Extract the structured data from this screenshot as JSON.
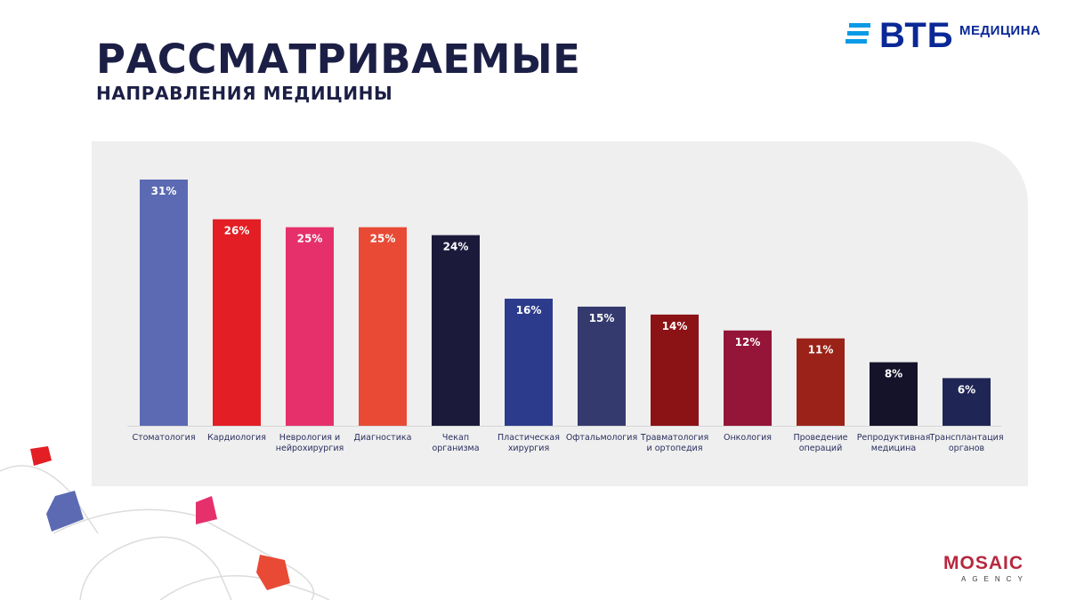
{
  "header": {
    "title": "РАССМАТРИВАЕМЫЕ",
    "subtitle": "НАПРАВЛЕНИЯ МЕДИЦИНЫ"
  },
  "brand": {
    "logo_main": "ВТБ",
    "logo_sub": "МЕДИЦИНА",
    "color": "#0a2896"
  },
  "footer": {
    "agency_name": "MOSAIC",
    "agency_sub": "AGENCY"
  },
  "chart_data": {
    "type": "bar",
    "title": "",
    "xlabel": "",
    "ylabel": "",
    "ylim": [
      0,
      35
    ],
    "grid": false,
    "categories": [
      [
        "Стоматология"
      ],
      [
        "Кардиология"
      ],
      [
        "Неврология и",
        "нейрохирургия"
      ],
      [
        "Диагностика"
      ],
      [
        "Чекап",
        "организма"
      ],
      [
        "Пластическая",
        "хирургия"
      ],
      [
        "Офтальмология"
      ],
      [
        "Травматология",
        "и ортопедия"
      ],
      [
        "Онкология"
      ],
      [
        "Проведение",
        "операций"
      ],
      [
        "Репродуктивная",
        "медицина"
      ],
      [
        "Трансплантация",
        "органов"
      ]
    ],
    "values": [
      31,
      26,
      25,
      25,
      24,
      16,
      15,
      14,
      12,
      11,
      8,
      6
    ],
    "value_labels": [
      "31%",
      "26%",
      "25%",
      "25%",
      "24%",
      "16%",
      "15%",
      "14%",
      "12%",
      "11%",
      "8%",
      "6%"
    ],
    "colors": [
      "#5b6ab2",
      "#e31e24",
      "#e5306b",
      "#e84a36",
      "#1c1a3b",
      "#2c3b8c",
      "#353a6e",
      "#8b1215",
      "#951539",
      "#9a2218",
      "#14132a",
      "#1f2656"
    ]
  }
}
